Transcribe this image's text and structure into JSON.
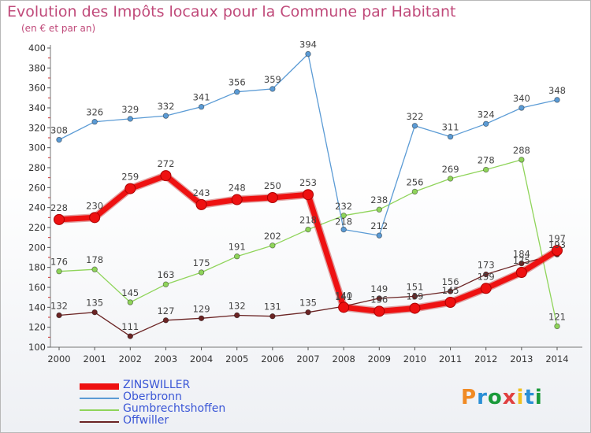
{
  "header": {
    "title": "Evolution des Impôts locaux pour la Commune par Habitant",
    "subtitle": "(en € et par an)"
  },
  "logo": {
    "text": "Proxiti",
    "colors": [
      "#f08a24",
      "#2a8fd6",
      "#1a9a3a",
      "#e04040",
      "#f0c020",
      "#2a8fd6",
      "#1a9a3a"
    ]
  },
  "chart_data": {
    "type": "line",
    "x": [
      2000,
      2001,
      2002,
      2003,
      2004,
      2005,
      2006,
      2007,
      2008,
      2009,
      2010,
      2011,
      2012,
      2013,
      2014
    ],
    "ylim": [
      100,
      400
    ],
    "yticks": [
      100,
      120,
      140,
      160,
      180,
      200,
      220,
      240,
      260,
      280,
      300,
      320,
      340,
      360,
      380,
      400
    ],
    "grid": false,
    "legend_position": "bottom-left",
    "series": [
      {
        "name": "ZINSWILLER",
        "color": "#ee1111",
        "values": [
          228,
          230,
          259,
          272,
          243,
          248,
          250,
          253,
          140,
          136,
          139,
          145,
          159,
          175,
          197
        ]
      },
      {
        "name": "Oberbronn",
        "color": "#5b9bd5",
        "values": [
          308,
          326,
          329,
          332,
          341,
          356,
          359,
          394,
          218,
          212,
          322,
          311,
          324,
          340,
          348
        ]
      },
      {
        "name": "Gumbrechtshoffen",
        "color": "#8fd45a",
        "values": [
          176,
          178,
          145,
          163,
          175,
          191,
          202,
          218,
          232,
          238,
          256,
          269,
          278,
          288,
          121
        ]
      },
      {
        "name": "Offwiller",
        "color": "#6b2424",
        "values": [
          132,
          135,
          111,
          127,
          129,
          132,
          131,
          135,
          141,
          149,
          151,
          156,
          173,
          184,
          193
        ]
      }
    ]
  }
}
